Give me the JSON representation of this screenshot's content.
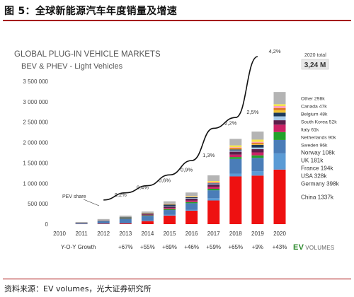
{
  "figure": {
    "title": "图 5：全球新能源汽车年度销量及增速",
    "source": "资料来源：EV volumes，光大证券研究所"
  },
  "logo": {
    "ev": "EV",
    "volumes": "VOLUMES"
  },
  "chart_data": {
    "type": "bar",
    "stacked": true,
    "title": "GLOBAL PLUG-IN VEHICLE MARKETS",
    "subtitle": "BEV & PHEV - Light Vehicles",
    "total_label": "2020 total",
    "total_value": "3,24 M",
    "categories": [
      "2010",
      "2011",
      "2012",
      "2013",
      "2014",
      "2015",
      "2016",
      "2017",
      "2018",
      "2019",
      "2020"
    ],
    "ylim": [
      0,
      3500000
    ],
    "yticks": [
      0,
      500000,
      1000000,
      1500000,
      2000000,
      2500000,
      3000000,
      3500000
    ],
    "ytick_labels": [
      "0",
      "500 000",
      "1 000 000",
      "1 500 000",
      "2 000 000",
      "2 500 000",
      "3 000 000",
      "3 500 000"
    ],
    "series": [
      {
        "name": "China",
        "label": "China 1337k",
        "color": "#ee1111",
        "values": [
          0,
          5000,
          13000,
          18000,
          75000,
          210000,
          330000,
          580000,
          1170000,
          1190000,
          1337000
        ]
      },
      {
        "name": "Germany",
        "label": "Germany 398k",
        "color": "#5b9bd5",
        "values": [
          0,
          2000,
          4000,
          8000,
          12000,
          23000,
          25000,
          55000,
          68000,
          108000,
          398000
        ]
      },
      {
        "name": "USA",
        "label": "USA 328k",
        "color": "#4a7db8",
        "values": [
          0,
          18000,
          52000,
          97000,
          118000,
          113000,
          158000,
          195000,
          360000,
          327000,
          328000
        ]
      },
      {
        "name": "France",
        "label": "France 194k",
        "color": "#22a22a",
        "values": [
          0,
          2000,
          5000,
          9000,
          11000,
          22000,
          29000,
          37000,
          46000,
          61000,
          194000
        ]
      },
      {
        "name": "UK",
        "label": "UK 181k",
        "color": "#cc2266",
        "values": [
          0,
          1000,
          3000,
          4000,
          15000,
          28000,
          38000,
          47000,
          60000,
          72000,
          181000
        ]
      },
      {
        "name": "Norway",
        "label": "Norway 108k",
        "color": "#5c1f4a",
        "values": [
          0,
          2000,
          4000,
          8000,
          20000,
          34000,
          45000,
          62000,
          72000,
          79000,
          108000
        ]
      },
      {
        "name": "Sweden",
        "label": "Sweden 96k",
        "color": "#a9cbe9",
        "values": [
          0,
          0,
          1000,
          2000,
          4000,
          9000,
          13000,
          20000,
          29000,
          40000,
          96000
        ]
      },
      {
        "name": "Netherlands",
        "label": "Netherlands 90k",
        "color": "#1e3a5a",
        "values": [
          0,
          0,
          5000,
          23000,
          15000,
          43000,
          24000,
          10000,
          27000,
          67000,
          90000
        ]
      },
      {
        "name": "Italy",
        "label": "Italy 61k",
        "color": "#f4c430",
        "values": [
          0,
          0,
          0,
          0,
          1000,
          2000,
          3000,
          4000,
          10000,
          17000,
          61000
        ]
      },
      {
        "name": "South Korea",
        "label": "South Korea 52k",
        "color": "#e07820",
        "values": [
          0,
          0,
          0,
          0,
          1000,
          3000,
          6000,
          14000,
          31000,
          36000,
          52000
        ]
      },
      {
        "name": "Belgium",
        "label": "Belgium 48k",
        "color": "#ff9bbd",
        "values": [
          0,
          0,
          0,
          0,
          2000,
          6000,
          8000,
          15000,
          13000,
          19000,
          48000
        ]
      },
      {
        "name": "Canada",
        "label": "Canada 47k",
        "color": "#f4e64a",
        "values": [
          0,
          0,
          0,
          1000,
          5000,
          7000,
          12000,
          18000,
          44000,
          56000,
          47000
        ]
      },
      {
        "name": "Other",
        "label": "Other 298k",
        "color": "#b4b4b4",
        "values": [
          0,
          22000,
          38000,
          40000,
          30000,
          60000,
          85000,
          140000,
          160000,
          197000,
          298000
        ]
      }
    ],
    "pev_share_label": "PEV share",
    "pev_share": {
      "years": [
        "2012",
        "2013",
        "2014",
        "2015",
        "2016",
        "2017",
        "2018",
        "2019",
        "2020"
      ],
      "values": [
        0.2,
        0.4,
        0.6,
        0.9,
        1.3,
        2.2,
        2.5,
        4.2
      ],
      "shown_years": [
        "2013",
        "2014",
        "2015",
        "2016",
        "2017",
        "2018",
        "2019",
        "2020"
      ],
      "labels": [
        "0,2%",
        "0,4%",
        "0,6%",
        "0,9%",
        "1,3%",
        "2,2%",
        "2,5%",
        "4,2%"
      ]
    },
    "yoy_label": "Y-O-Y Growth",
    "yoy_growth": [
      "+67%",
      "+55%",
      "+69%",
      "+46%",
      "+59%",
      "+65%",
      "+9%",
      "+43%"
    ]
  }
}
